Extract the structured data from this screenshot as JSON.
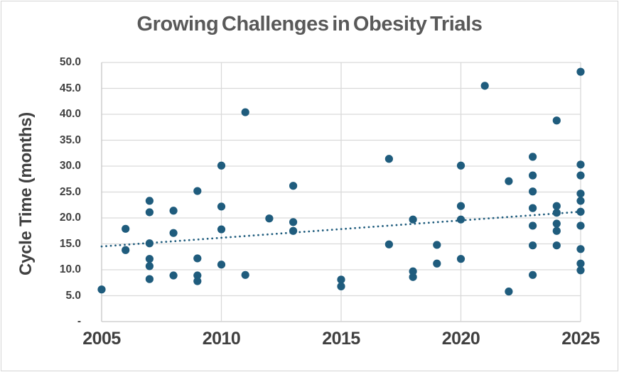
{
  "chart_data": {
    "type": "scatter",
    "title": "Growing Challenges in Obesity Trials",
    "xlabel": "",
    "ylabel": "Cycle Time (months)",
    "xlim": [
      2005,
      2025
    ],
    "ylim": [
      0,
      50
    ],
    "x_ticks": [
      2005,
      2010,
      2015,
      2020,
      2025
    ],
    "y_ticks": [
      {
        "value": 50,
        "label": "50.0"
      },
      {
        "value": 45,
        "label": "45.0"
      },
      {
        "value": 40,
        "label": "40.0"
      },
      {
        "value": 35,
        "label": "35.0"
      },
      {
        "value": 30,
        "label": "30.0"
      },
      {
        "value": 25,
        "label": "25.0"
      },
      {
        "value": 20,
        "label": "20.0"
      },
      {
        "value": 15,
        "label": "15.0"
      },
      {
        "value": 10,
        "label": "10.0"
      },
      {
        "value": 5,
        "label": "5.0"
      },
      {
        "value": 0,
        "label": "-"
      }
    ],
    "grid": true,
    "legend": "none",
    "marker_color": "#1F5C7D",
    "gridline_color": "#D9D9D9",
    "axis_line_color": "#C6C6C6",
    "title_color": "#595959",
    "label_color": "#404040",
    "points": [
      [
        2005,
        6.2
      ],
      [
        2006,
        17.9
      ],
      [
        2006,
        13.8
      ],
      [
        2007,
        23.3
      ],
      [
        2007,
        21.1
      ],
      [
        2007,
        15.1
      ],
      [
        2007,
        12.1
      ],
      [
        2007,
        10.7
      ],
      [
        2007,
        8.2
      ],
      [
        2008,
        21.4
      ],
      [
        2008,
        17.1
      ],
      [
        2008,
        8.9
      ],
      [
        2009,
        25.2
      ],
      [
        2009,
        12.2
      ],
      [
        2009,
        8.9
      ],
      [
        2009,
        7.8
      ],
      [
        2010,
        30.1
      ],
      [
        2010,
        22.2
      ],
      [
        2010,
        17.8
      ],
      [
        2010,
        11.0
      ],
      [
        2011,
        40.4
      ],
      [
        2011,
        9.0
      ],
      [
        2012,
        19.9
      ],
      [
        2013,
        26.2
      ],
      [
        2013,
        19.2
      ],
      [
        2013,
        17.5
      ],
      [
        2015,
        8.1
      ],
      [
        2015,
        6.8
      ],
      [
        2017,
        31.4
      ],
      [
        2017,
        14.9
      ],
      [
        2018,
        19.7
      ],
      [
        2018,
        9.7
      ],
      [
        2018,
        8.6
      ],
      [
        2019,
        14.8
      ],
      [
        2019,
        11.2
      ],
      [
        2020,
        30.1
      ],
      [
        2020,
        22.3
      ],
      [
        2020,
        19.7
      ],
      [
        2020,
        12.1
      ],
      [
        2021,
        45.5
      ],
      [
        2022,
        27.1
      ],
      [
        2022,
        5.8
      ],
      [
        2023,
        31.8
      ],
      [
        2023,
        28.2
      ],
      [
        2023,
        25.1
      ],
      [
        2023,
        21.9
      ],
      [
        2023,
        18.5
      ],
      [
        2023,
        14.7
      ],
      [
        2023,
        9.0
      ],
      [
        2024,
        38.8
      ],
      [
        2024,
        22.3
      ],
      [
        2024,
        21.0
      ],
      [
        2024,
        18.9
      ],
      [
        2024,
        17.5
      ],
      [
        2024,
        14.7
      ],
      [
        2025,
        48.2
      ],
      [
        2025,
        30.3
      ],
      [
        2025,
        28.2
      ],
      [
        2025,
        24.7
      ],
      [
        2025,
        23.3
      ],
      [
        2025,
        21.2
      ],
      [
        2025,
        18.5
      ],
      [
        2025,
        14.0
      ],
      [
        2025,
        11.2
      ],
      [
        2025,
        9.9
      ]
    ],
    "trendline": {
      "style": "dotted",
      "x": [
        2005,
        2025
      ],
      "y": [
        14.5,
        21.2
      ],
      "color": "#1F5C7D"
    }
  }
}
